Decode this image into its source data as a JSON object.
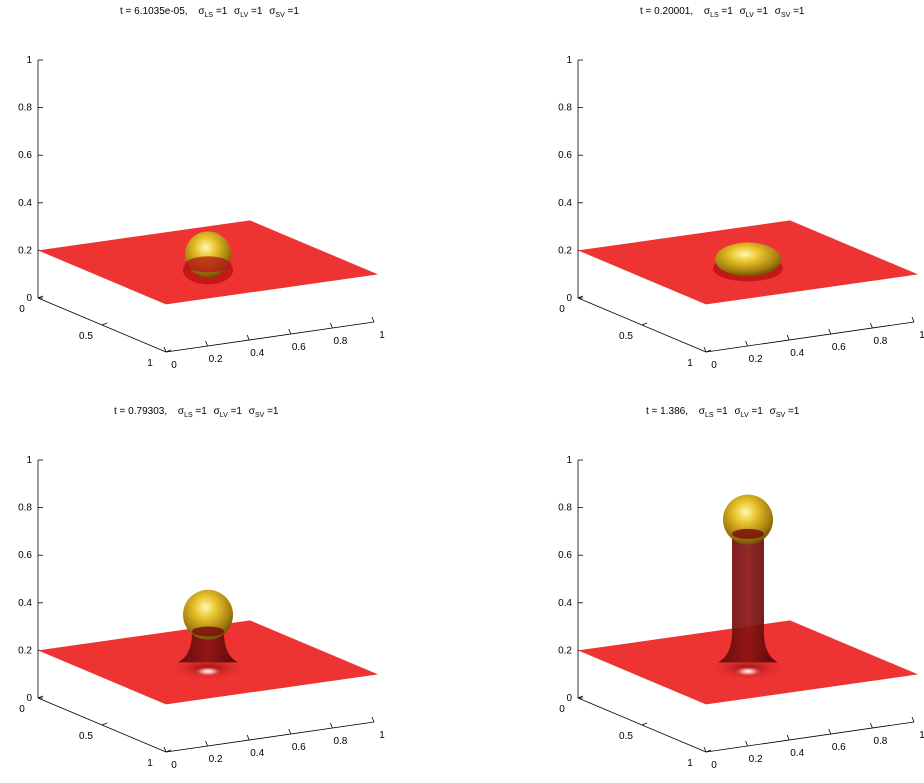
{
  "figure": {
    "panels": [
      {
        "title": {
          "t": "t = 6.1035e-05,",
          "s1": "σ",
          "s1sub": "LS",
          "s1val": " =1",
          "s2": "σ",
          "s2sub": "LV",
          "s2val": " =1",
          "s3": "σ",
          "s3sub": "SV",
          "s3val": " =1"
        }
      },
      {
        "title": {
          "t": "t = 0.20001,",
          "s1": "σ",
          "s1sub": "LS",
          "s1val": " =1",
          "s2": "σ",
          "s2sub": "LV",
          "s2val": " =1",
          "s3": "σ",
          "s3sub": "SV",
          "s3val": " =1"
        }
      },
      {
        "title": {
          "t": "t = 0.79303,",
          "s1": "σ",
          "s1sub": "LS",
          "s1val": " =1",
          "s2": "σ",
          "s2sub": "LV",
          "s2val": " =1",
          "s3": "σ",
          "s3sub": "SV",
          "s3val": " =1"
        }
      },
      {
        "title": {
          "t": "t = 1.386,",
          "s1": "σ",
          "s1sub": "LS",
          "s1val": " =1",
          "s2": "σ",
          "s2sub": "LV",
          "s2val": " =1",
          "s3": "σ",
          "s3sub": "SV",
          "s3val": " =1"
        }
      }
    ]
  },
  "chart_data": [
    {
      "type": "surface3d",
      "t": 6.1035e-05,
      "sigma_LS": 1,
      "sigma_LV": 1,
      "sigma_SV": 1,
      "zticks": [
        "0",
        "0.2",
        "0.4",
        "0.6",
        "0.8",
        "1"
      ],
      "xticks": [
        "0",
        "0.2",
        "0.4",
        "0.6",
        "0.8",
        "1"
      ],
      "yticks": [
        "0",
        "0.5",
        "1"
      ],
      "zlim": [
        0,
        1
      ],
      "xlim": [
        0,
        1
      ],
      "ylim": [
        0,
        1
      ],
      "substrate_z": 0.2,
      "droplet": {
        "shape": "sphere",
        "center_z": 0.22,
        "neck_top_z": null
      },
      "colors": {
        "substrate": "#ee3333",
        "droplet": "#d4a514",
        "neck": "#6b0b0b"
      }
    },
    {
      "type": "surface3d",
      "t": 0.20001,
      "sigma_LS": 1,
      "sigma_LV": 1,
      "sigma_SV": 1,
      "zticks": [
        "0",
        "0.2",
        "0.4",
        "0.6",
        "0.8",
        "1"
      ],
      "xticks": [
        "0",
        "0.2",
        "0.4",
        "0.6",
        "0.8",
        "1"
      ],
      "yticks": [
        "0",
        "0.5",
        "1"
      ],
      "zlim": [
        0,
        1
      ],
      "xlim": [
        0,
        1
      ],
      "ylim": [
        0,
        1
      ],
      "substrate_z": 0.2,
      "droplet": {
        "shape": "cap",
        "center_z": 0.21,
        "neck_top_z": null
      },
      "colors": {
        "substrate": "#ee3333",
        "droplet": "#d4a514",
        "neck": "#6b0b0b"
      }
    },
    {
      "type": "surface3d",
      "t": 0.79303,
      "sigma_LS": 1,
      "sigma_LV": 1,
      "sigma_SV": 1,
      "zticks": [
        "0",
        "0.2",
        "0.4",
        "0.6",
        "0.8",
        "1"
      ],
      "xticks": [
        "0",
        "0.2",
        "0.4",
        "0.6",
        "0.8",
        "1"
      ],
      "yticks": [
        "0",
        "0.5",
        "1"
      ],
      "zlim": [
        0,
        1
      ],
      "xlim": [
        0,
        1
      ],
      "ylim": [
        0,
        1
      ],
      "substrate_z": 0.2,
      "droplet": {
        "shape": "sphere",
        "center_z": 0.4,
        "neck_top_z": 0.33
      },
      "colors": {
        "substrate": "#ee3333",
        "droplet": "#d4a514",
        "neck": "#6b0b0b"
      }
    },
    {
      "type": "surface3d",
      "t": 1.386,
      "sigma_LS": 1,
      "sigma_LV": 1,
      "sigma_SV": 1,
      "zticks": [
        "0",
        "0.2",
        "0.4",
        "0.6",
        "0.8",
        "1"
      ],
      "xticks": [
        "0",
        "0.2",
        "0.4",
        "0.6",
        "0.8",
        "1"
      ],
      "yticks": [
        "0",
        "0.5",
        "1"
      ],
      "zlim": [
        0,
        1
      ],
      "xlim": [
        0,
        1
      ],
      "ylim": [
        0,
        1
      ],
      "substrate_z": 0.2,
      "droplet": {
        "shape": "sphere",
        "center_z": 0.8,
        "neck_top_z": 0.74
      },
      "colors": {
        "substrate": "#ee3333",
        "droplet": "#d4a514",
        "neck": "#6b0b0b"
      }
    }
  ]
}
